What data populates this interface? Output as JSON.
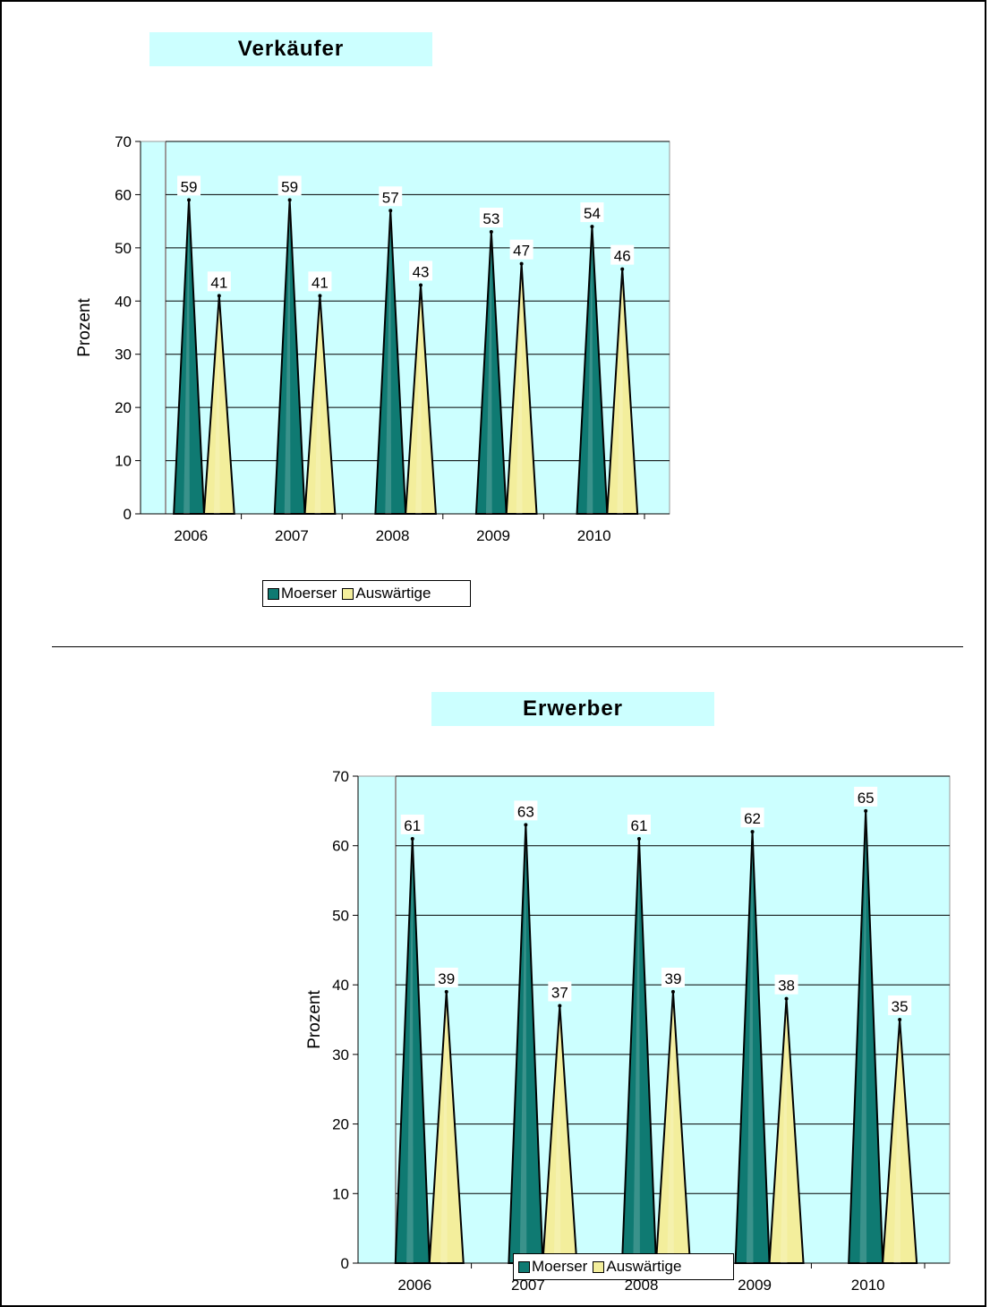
{
  "colors": {
    "moerser": "#0f7a72",
    "auswaertige": "#f3ee9c",
    "plot_bg": "#ccffff",
    "title_bg": "#ccffff"
  },
  "chart_data": [
    {
      "type": "bar",
      "shape": "cone",
      "title": "Verkäufer",
      "ylabel": "Prozent",
      "xlabel": "",
      "ylim": [
        0,
        70
      ],
      "yticks": [
        "0",
        "10",
        "20",
        "30",
        "40",
        "50",
        "60",
        "70"
      ],
      "categories": [
        "2006",
        "2007",
        "2008",
        "2009",
        "2010"
      ],
      "legend_position": "bottom",
      "grid": true,
      "series": [
        {
          "name": "Moerser",
          "values": [
            59,
            59,
            57,
            53,
            54
          ],
          "labels": [
            "59",
            "59",
            "57",
            "53",
            "54"
          ]
        },
        {
          "name": "Auswärtige",
          "values": [
            41,
            41,
            43,
            47,
            46
          ],
          "labels": [
            "41",
            "41",
            "43",
            "47",
            "46"
          ]
        }
      ]
    },
    {
      "type": "bar",
      "shape": "cone",
      "title": "Erwerber",
      "ylabel": "Prozent",
      "xlabel": "",
      "ylim": [
        0,
        70
      ],
      "yticks": [
        "0",
        "10",
        "20",
        "30",
        "40",
        "50",
        "60",
        "70"
      ],
      "categories": [
        "2006",
        "2007",
        "2008",
        "2009",
        "2010"
      ],
      "legend_position": "bottom",
      "grid": true,
      "series": [
        {
          "name": "Moerser",
          "values": [
            61,
            63,
            61,
            62,
            65
          ],
          "labels": [
            "61",
            "63",
            "61",
            "62",
            "65"
          ]
        },
        {
          "name": "Auswärtige",
          "values": [
            39,
            37,
            39,
            38,
            35
          ],
          "labels": [
            "39",
            "37",
            "39",
            "38",
            "35"
          ]
        }
      ]
    }
  ]
}
